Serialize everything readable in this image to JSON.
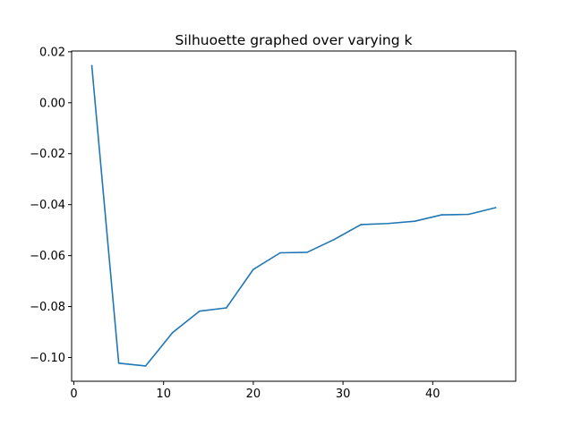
{
  "chart_data": {
    "type": "line",
    "title": "Silhuoette graphed over varying k",
    "xlabel": "",
    "ylabel": "",
    "xlim": [
      -0.25,
      49.25
    ],
    "ylim": [
      -0.1093,
      0.0203
    ],
    "xticks": [
      0,
      10,
      20,
      30,
      40
    ],
    "xtick_labels": [
      "0",
      "10",
      "20",
      "30",
      "40"
    ],
    "yticks": [
      0.02,
      0.0,
      -0.02,
      -0.04,
      -0.06,
      -0.08,
      -0.1
    ],
    "ytick_labels": [
      "0.02",
      "0.00",
      "−0.02",
      "−0.04",
      "−0.06",
      "−0.08",
      "−0.10"
    ],
    "grid": false,
    "legend": "none",
    "series": [
      {
        "color": "#1f77b4",
        "x": [
          2,
          5,
          8,
          11,
          14,
          17,
          20,
          23,
          26,
          29,
          32,
          35,
          38,
          41,
          44,
          47
        ],
        "y": [
          0.0145,
          -0.1022,
          -0.1033,
          -0.0902,
          -0.0818,
          -0.0805,
          -0.0654,
          -0.0589,
          -0.0587,
          -0.0537,
          -0.0478,
          -0.0474,
          -0.0465,
          -0.044,
          -0.0438,
          -0.0412
        ]
      }
    ]
  }
}
